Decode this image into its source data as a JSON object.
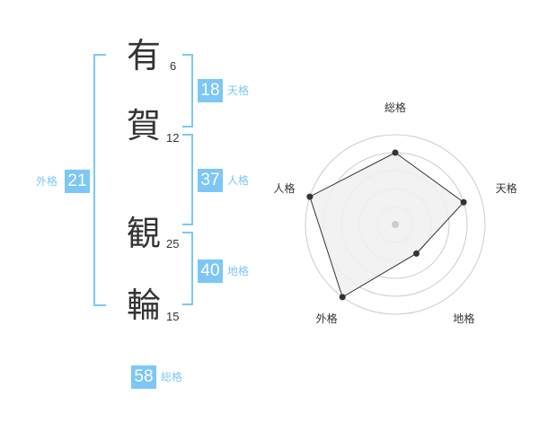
{
  "name": {
    "chars": [
      {
        "char": "有",
        "strokes": "6"
      },
      {
        "char": "賀",
        "strokes": "12"
      },
      {
        "char": "観",
        "strokes": "25"
      },
      {
        "char": "輪",
        "strokes": "15"
      }
    ]
  },
  "kaku": {
    "tenkaku": {
      "value": "18",
      "label": "天格"
    },
    "jinkaku": {
      "value": "37",
      "label": "人格"
    },
    "chikaku": {
      "value": "40",
      "label": "地格"
    },
    "gaikaku": {
      "value": "21",
      "label": "外格"
    },
    "soukaku": {
      "value": "58",
      "label": "総格"
    }
  },
  "chart_data": {
    "type": "radar",
    "axes": [
      "総格",
      "天格",
      "地格",
      "外格",
      "人格"
    ],
    "values": [
      4,
      4,
      2,
      5,
      5
    ],
    "range": [
      0,
      5
    ],
    "rings": 5,
    "fill": "#f0f0f0",
    "stroke": "#333333"
  },
  "colors": {
    "accent": "#7cc7f5"
  }
}
